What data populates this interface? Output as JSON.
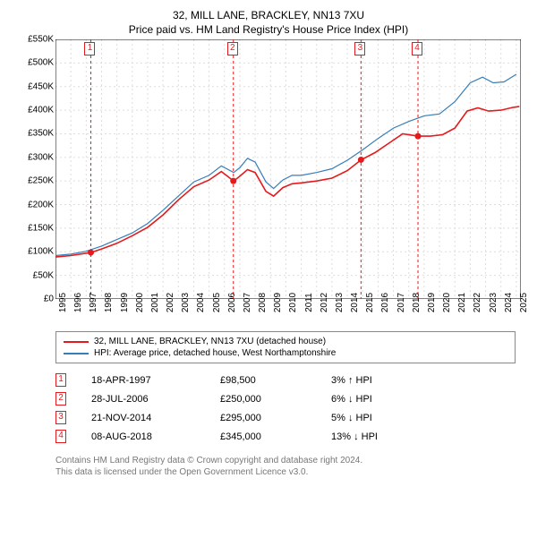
{
  "title": "32, MILL LANE, BRACKLEY, NN13 7XU",
  "subtitle": "Price paid vs. HM Land Registry's House Price Index (HPI)",
  "chart": {
    "type": "line",
    "background_color": "#ffffff",
    "border_color": "#000000",
    "grid_color": "#dddddd",
    "grid_dash": "2,3",
    "x": {
      "min": 1995.0,
      "max": 2025.3,
      "ticks": [
        1995,
        1996,
        1997,
        1998,
        1999,
        2000,
        2001,
        2002,
        2003,
        2004,
        2005,
        2006,
        2007,
        2008,
        2009,
        2010,
        2011,
        2012,
        2013,
        2014,
        2015,
        2016,
        2017,
        2018,
        2019,
        2020,
        2021,
        2022,
        2023,
        2024,
        2025
      ],
      "tick_labels": [
        "1995",
        "1996",
        "1997",
        "1998",
        "1999",
        "2000",
        "2001",
        "2002",
        "2003",
        "2004",
        "2005",
        "2006",
        "2007",
        "2008",
        "2009",
        "2010",
        "2011",
        "2012",
        "2013",
        "2014",
        "2015",
        "2016",
        "2017",
        "2018",
        "2019",
        "2020",
        "2021",
        "2022",
        "2023",
        "2024",
        "2025"
      ]
    },
    "y": {
      "min": 0,
      "max": 550000,
      "ticks": [
        0,
        50000,
        100000,
        150000,
        200000,
        250000,
        300000,
        350000,
        400000,
        450000,
        500000,
        550000
      ],
      "tick_labels": [
        "£0",
        "£50K",
        "£100K",
        "£150K",
        "£200K",
        "£250K",
        "£300K",
        "£350K",
        "£400K",
        "£450K",
        "£500K",
        "£550K"
      ]
    },
    "series": [
      {
        "id": "paid",
        "label": "32, MILL LANE, BRACKLEY, NN13 7XU (detached house)",
        "color": "#e41a1c",
        "width": 1.6,
        "points": [
          [
            1995.0,
            89000
          ],
          [
            1996.0,
            92000
          ],
          [
            1997.3,
            98500
          ],
          [
            1998.0,
            106000
          ],
          [
            1999.0,
            118000
          ],
          [
            2000.0,
            134000
          ],
          [
            2001.0,
            152000
          ],
          [
            2002.0,
            178000
          ],
          [
            2003.0,
            210000
          ],
          [
            2004.0,
            238000
          ],
          [
            2005.0,
            252000
          ],
          [
            2005.8,
            270000
          ],
          [
            2006.6,
            250000
          ],
          [
            2007.0,
            260000
          ],
          [
            2007.5,
            274000
          ],
          [
            2008.0,
            268000
          ],
          [
            2008.7,
            228000
          ],
          [
            2009.2,
            218000
          ],
          [
            2009.8,
            236000
          ],
          [
            2010.4,
            244000
          ],
          [
            2011.0,
            246000
          ],
          [
            2012.0,
            250000
          ],
          [
            2013.0,
            256000
          ],
          [
            2014.0,
            272000
          ],
          [
            2014.9,
            295000
          ],
          [
            2015.8,
            310000
          ],
          [
            2016.8,
            332000
          ],
          [
            2017.6,
            350000
          ],
          [
            2018.6,
            345000
          ],
          [
            2019.4,
            345000
          ],
          [
            2020.2,
            348000
          ],
          [
            2021.0,
            362000
          ],
          [
            2021.8,
            398000
          ],
          [
            2022.5,
            405000
          ],
          [
            2023.2,
            398000
          ],
          [
            2024.0,
            400000
          ],
          [
            2024.8,
            406000
          ],
          [
            2025.2,
            408000
          ]
        ]
      },
      {
        "id": "hpi",
        "label": "HPI: Average price, detached house, West Northamptonshire",
        "color": "#377eb8",
        "width": 1.2,
        "points": [
          [
            1995.0,
            92000
          ],
          [
            1996.0,
            95000
          ],
          [
            1997.0,
            101000
          ],
          [
            1998.0,
            112000
          ],
          [
            1999.0,
            126000
          ],
          [
            2000.0,
            140000
          ],
          [
            2001.0,
            160000
          ],
          [
            2002.0,
            188000
          ],
          [
            2003.0,
            218000
          ],
          [
            2004.0,
            248000
          ],
          [
            2005.0,
            262000
          ],
          [
            2005.8,
            282000
          ],
          [
            2006.6,
            268000
          ],
          [
            2007.0,
            278000
          ],
          [
            2007.5,
            298000
          ],
          [
            2008.0,
            290000
          ],
          [
            2008.7,
            248000
          ],
          [
            2009.2,
            234000
          ],
          [
            2009.8,
            252000
          ],
          [
            2010.4,
            262000
          ],
          [
            2011.0,
            262000
          ],
          [
            2012.0,
            268000
          ],
          [
            2013.0,
            276000
          ],
          [
            2014.0,
            294000
          ],
          [
            2015.0,
            316000
          ],
          [
            2016.0,
            340000
          ],
          [
            2017.0,
            362000
          ],
          [
            2018.0,
            376000
          ],
          [
            2019.0,
            388000
          ],
          [
            2020.0,
            392000
          ],
          [
            2021.0,
            418000
          ],
          [
            2022.0,
            458000
          ],
          [
            2022.8,
            470000
          ],
          [
            2023.5,
            458000
          ],
          [
            2024.2,
            460000
          ],
          [
            2025.0,
            476000
          ]
        ]
      }
    ],
    "event_markers": [
      {
        "n": 1,
        "x": 1997.3,
        "y": 98500,
        "color": "#e41a1c"
      },
      {
        "n": 2,
        "x": 2006.58,
        "y": 250000,
        "color": "#e41a1c"
      },
      {
        "n": 3,
        "x": 2014.89,
        "y": 295000,
        "color": "#e41a1c"
      },
      {
        "n": 4,
        "x": 2018.6,
        "y": 345000,
        "color": "#e41a1c"
      }
    ],
    "event_line_dash": "3,3"
  },
  "legend": [
    {
      "color": "#e41a1c",
      "label": "32, MILL LANE, BRACKLEY, NN13 7XU (detached house)"
    },
    {
      "color": "#377eb8",
      "label": "HPI: Average price, detached house, West Northamptonshire"
    }
  ],
  "sales": [
    {
      "n": 1,
      "color": "#e41a1c",
      "date": "18-APR-1997",
      "price": "£98,500",
      "diff": "3%",
      "arrow": "↑",
      "suffix": "HPI"
    },
    {
      "n": 2,
      "color": "#e41a1c",
      "date": "28-JUL-2006",
      "price": "£250,000",
      "diff": "6%",
      "arrow": "↓",
      "suffix": "HPI"
    },
    {
      "n": 3,
      "color": "#e41a1c",
      "date": "21-NOV-2014",
      "price": "£295,000",
      "diff": "5%",
      "arrow": "↓",
      "suffix": "HPI"
    },
    {
      "n": 4,
      "color": "#e41a1c",
      "date": "08-AUG-2018",
      "price": "£345,000",
      "diff": "13%",
      "arrow": "↓",
      "suffix": "HPI"
    }
  ],
  "attribution": {
    "line1": "Contains HM Land Registry data © Crown copyright and database right 2024.",
    "line2": "This data is licensed under the Open Government Licence v3.0."
  }
}
